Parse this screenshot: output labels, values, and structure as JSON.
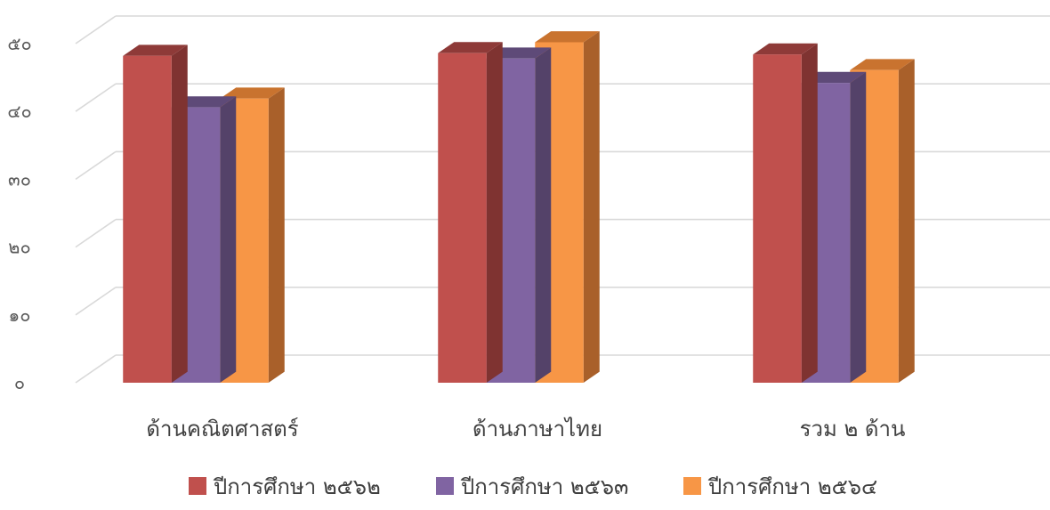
{
  "chart_data": {
    "type": "bar",
    "style": "3d-clustered-column",
    "title": "",
    "xlabel": "",
    "ylabel": "",
    "categories": [
      "ด้านคณิตศาสตร์",
      "ด้านภาษาไทย",
      "รวม ๒ ด้าน"
    ],
    "series": [
      {
        "name": "ปีการศึกษา ๒๕๖๒",
        "values": [
          48.2,
          48.6,
          48.4
        ],
        "color": "#C0504D",
        "top_color": "#8E3A38",
        "side_color": "#7F3331"
      },
      {
        "name": "ปีการศึกษา ๒๕๖๓",
        "values": [
          40.6,
          47.8,
          44.2
        ],
        "color": "#8064A2",
        "top_color": "#5E4A78",
        "side_color": "#544269"
      },
      {
        "name": "ปีการศึกษา ๒๕๖๔",
        "values": [
          41.9,
          50.2,
          46.1
        ],
        "color": "#F79646",
        "top_color": "#C9732F",
        "side_color": "#A9602A"
      }
    ],
    "ylim": [
      0,
      50
    ],
    "yticks": [
      {
        "value": 0,
        "label": "๐"
      },
      {
        "value": 10,
        "label": "๑๐"
      },
      {
        "value": 20,
        "label": "๒๐"
      },
      {
        "value": 30,
        "label": "๓๐"
      },
      {
        "value": 40,
        "label": "๔๐"
      },
      {
        "value": 50,
        "label": "๕๐"
      }
    ],
    "grid": true,
    "legend_position": "bottom"
  }
}
